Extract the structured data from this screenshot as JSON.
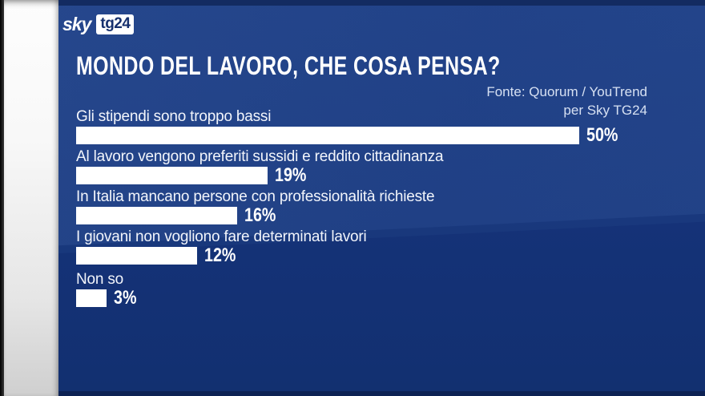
{
  "logo": {
    "sky": "sky",
    "badge": "tg24"
  },
  "header": {
    "title": "MONDO DEL LAVORO, CHE COSA PENSA?",
    "source_line1": "Fonte: Quorum / YouTrend",
    "source_line2": "per Sky TG24"
  },
  "chart_data": {
    "type": "bar",
    "orientation": "horizontal",
    "title": "MONDO DEL LAVORO, CHE COSA PENSA?",
    "source": "Fonte: Quorum / YouTrend per Sky TG24",
    "categories": [
      "Gli stipendi sono troppo bassi",
      "Al lavoro vengono preferiti sussidi e reddito cittadinanza",
      "In Italia mancano persone con professionalità richieste",
      "I giovani non vogliono fare determinati lavori",
      "Non so"
    ],
    "values": [
      50,
      19,
      16,
      12,
      3
    ],
    "value_suffix": "%",
    "xlim": [
      0,
      50
    ],
    "bar_color": "#ffffff",
    "legend": "none",
    "grid": "off"
  },
  "colors": {
    "panel_blue": "#153278",
    "swoosh_blue": "#1d4084",
    "top_strip": "#132b61",
    "bottom_strip": "#0d2254",
    "bar_white": "#ffffff",
    "logo_navy": "#16306e",
    "source_text": "#d6e0f2"
  }
}
